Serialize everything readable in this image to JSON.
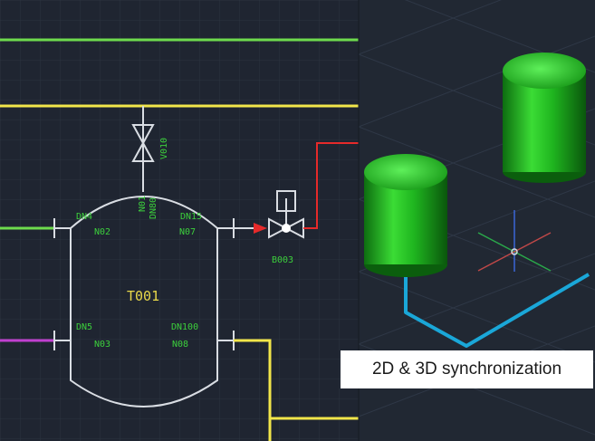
{
  "caption": "2D & 3D synchronization",
  "tank": {
    "tag": "T001"
  },
  "nozzles": [
    {
      "dn": "DN4",
      "no": "N02"
    },
    {
      "dn": "DN15",
      "no": "N07"
    },
    {
      "dn": "DN5",
      "no": "N03"
    },
    {
      "dn": "DN100",
      "no": "N08"
    },
    {
      "dn": "DN80",
      "no": "N01"
    }
  ],
  "valves": {
    "manual": "V010",
    "control": "B003"
  },
  "colors": {
    "background_2d": "#1f2531",
    "background_3d": "#212833",
    "grid": "#2b3340",
    "pipe_green": "#6edb4d",
    "pipe_yellow": "#f2e64a",
    "pipe_red": "#e62a2a",
    "pipe_magenta": "#c040d0",
    "pipe_cyan": "#1aa7d8",
    "outline": "#d9dde3",
    "label_green": "#3ccf3c",
    "label_yellow": "#e8d84a",
    "tank_3d": "#1fb51f"
  }
}
